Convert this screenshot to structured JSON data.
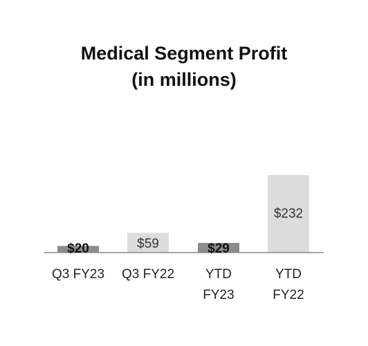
{
  "chart_data": {
    "type": "bar",
    "title_line1": "Medical Segment Profit",
    "title_line2": "(in millions)",
    "categories": [
      {
        "line1": "Q3 FY23",
        "line2": ""
      },
      {
        "line1": "Q3 FY22",
        "line2": ""
      },
      {
        "line1": "YTD",
        "line2": "FY23"
      },
      {
        "line1": "YTD",
        "line2": "FY22"
      }
    ],
    "values": [
      20,
      59,
      29,
      232
    ],
    "value_labels": [
      "$20",
      "$59",
      "$29",
      "$232"
    ],
    "colors": [
      "#8c8c8c",
      "#dcdcdc",
      "#8c8c8c",
      "#dcdcdc"
    ],
    "value_unit": "$ millions",
    "ylim": [
      0,
      250
    ],
    "grid": false,
    "legend": "none"
  }
}
